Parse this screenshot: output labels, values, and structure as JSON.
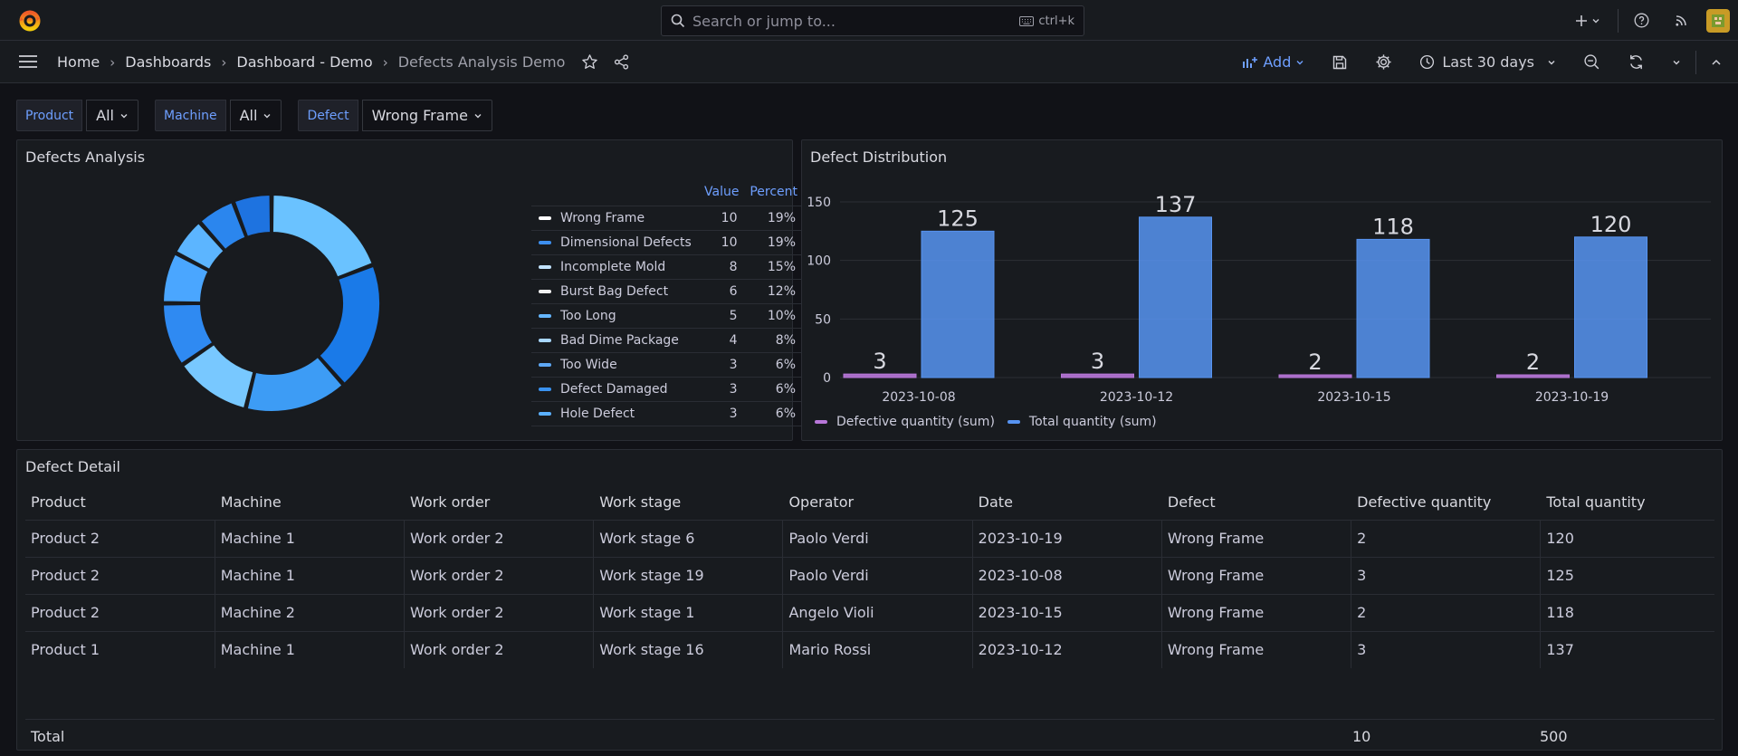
{
  "topbar": {
    "search_placeholder": "Search or jump to...",
    "search_shortcut": "ctrl+k",
    "icons": [
      "grafana-logo-icon",
      "search-icon",
      "keyboard-icon",
      "plus-icon",
      "chevron-down-icon",
      "help-icon",
      "rss-icon",
      "user-avatar-icon"
    ]
  },
  "navbar": {
    "breadcrumbs": [
      "Home",
      "Dashboards",
      "Dashboard - Demo",
      "Defects Analysis Demo"
    ],
    "add_label": "Add",
    "time_range": "Last 30 days"
  },
  "variables": [
    {
      "label": "Product",
      "value": "All"
    },
    {
      "label": "Machine",
      "value": "All"
    },
    {
      "label": "Defect",
      "value": "Wrong Frame"
    }
  ],
  "pie_panel": {
    "title": "Defects Analysis",
    "col_value": "Value",
    "col_percent": "Percent",
    "rows": [
      {
        "name": "Wrong Frame",
        "value": "10",
        "percent": "19%",
        "color": "#ffffff"
      },
      {
        "name": "Dimensional Defects",
        "value": "10",
        "percent": "19%",
        "color": "#3d8fef"
      },
      {
        "name": "Incomplete Mold",
        "value": "8",
        "percent": "15%",
        "color": "#c2e3ff"
      },
      {
        "name": "Burst Bag Defect",
        "value": "6",
        "percent": "12%",
        "color": "#f2f2f2"
      },
      {
        "name": "Too Long",
        "value": "5",
        "percent": "10%",
        "color": "#65b6ff"
      },
      {
        "name": "Bad Dime Package",
        "value": "4",
        "percent": "8%",
        "color": "#a8d6ff"
      },
      {
        "name": "Too Wide",
        "value": "3",
        "percent": "6%",
        "color": "#5ea8f5"
      },
      {
        "name": "Defect Damaged",
        "value": "3",
        "percent": "6%",
        "color": "#3a92f0"
      },
      {
        "name": "Hole Defect",
        "value": "3",
        "percent": "6%",
        "color": "#5ab0ff"
      }
    ]
  },
  "bar_panel": {
    "title": "Defect Distribution",
    "legend": [
      "Defective quantity (sum)",
      "Total quantity (sum)"
    ]
  },
  "chart_data": {
    "type": "bar",
    "title": "Defect Distribution",
    "categories": [
      "2023-10-08",
      "2023-10-12",
      "2023-10-15",
      "2023-10-19"
    ],
    "series": [
      {
        "name": "Defective quantity (sum)",
        "values": [
          3,
          3,
          2,
          2
        ],
        "color": "#b877d9"
      },
      {
        "name": "Total quantity (sum)",
        "values": [
          125,
          137,
          118,
          120
        ],
        "color": "#5794f2"
      }
    ],
    "yticks": [
      0,
      50,
      100,
      150
    ],
    "ylim": [
      0,
      150
    ],
    "grid": true,
    "legend_position": "bottom-left"
  },
  "detail_panel": {
    "title": "Defect Detail",
    "columns": [
      "Product",
      "Machine",
      "Work order",
      "Work stage",
      "Operator",
      "Date",
      "Defect",
      "Defective quantity",
      "Total quantity"
    ],
    "rows": [
      [
        "Product 2",
        "Machine 1",
        "Work order 2",
        "Work stage 6",
        "Paolo Verdi",
        "2023-10-19",
        "Wrong Frame",
        "2",
        "120"
      ],
      [
        "Product 2",
        "Machine 1",
        "Work order 2",
        "Work stage 19",
        "Paolo Verdi",
        "2023-10-08",
        "Wrong Frame",
        "3",
        "125"
      ],
      [
        "Product 2",
        "Machine 2",
        "Work order 2",
        "Work stage 1",
        "Angelo Violi",
        "2023-10-15",
        "Wrong Frame",
        "2",
        "118"
      ],
      [
        "Product 1",
        "Machine 1",
        "Work order 2",
        "Work stage 16",
        "Mario Rossi",
        "2023-10-12",
        "Wrong Frame",
        "3",
        "137"
      ]
    ],
    "total_label": "Total",
    "total_defective": "10",
    "total_quantity": "500"
  }
}
